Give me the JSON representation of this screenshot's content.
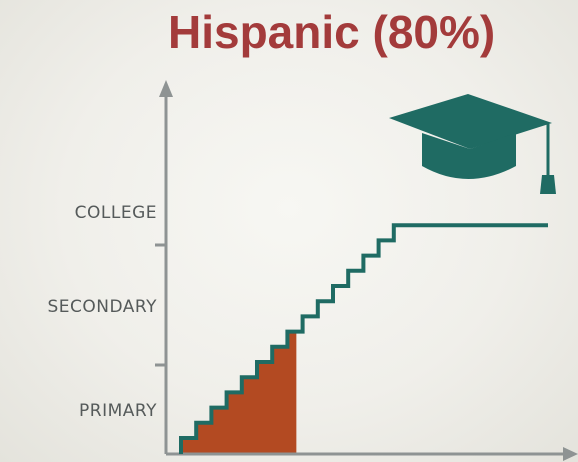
{
  "title": "Hispanic (80%)",
  "levels": [
    "COLLEGE",
    "SECONDARY",
    "PRIMARY"
  ],
  "completion_fraction": 0.8,
  "icons": {
    "cap": "graduation-cap-icon"
  },
  "colors": {
    "title": "#a33b3b",
    "staircase": "#1f6b63",
    "fill": "#b34a22",
    "axis": "#8e9393",
    "label": "#555a5a"
  }
}
